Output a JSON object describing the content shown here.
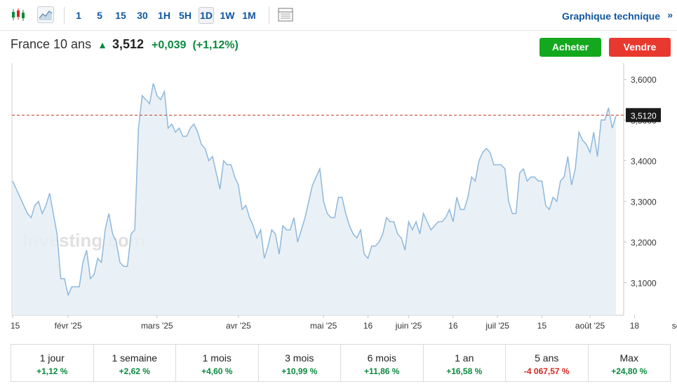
{
  "toolbar": {
    "timeframes": [
      "1",
      "5",
      "15",
      "30",
      "1H",
      "5H",
      "1D",
      "1W",
      "1M"
    ],
    "active_timeframe": "1D",
    "tech_link": "Graphique technique",
    "tech_arrow": "»"
  },
  "quote": {
    "name": "France 10 ans",
    "last": "3,512",
    "change": "+0,039",
    "change_pct": "(+1,12%)",
    "direction_icon": "arrow-up-icon"
  },
  "actions": {
    "buy": "Acheter",
    "sell": "Vendre"
  },
  "colors": {
    "up": "#0b8a3e",
    "down": "#d3271f",
    "line": "#8fb8dc",
    "fill": "#e6eef5",
    "ref_line": "#c0392b",
    "buy": "#14a81e",
    "sell": "#e8392f"
  },
  "chart_data": {
    "type": "area",
    "watermark": "Investing.com",
    "current_value": 3.512,
    "current_label": "3,5120",
    "ylim": [
      3.02,
      3.64
    ],
    "yticks": [
      3.1,
      3.2,
      3.3,
      3.4,
      3.5,
      3.6
    ],
    "ytick_labels": [
      "3,1000",
      "3,2000",
      "3,3000",
      "3,4000",
      "3,5000",
      "3,6000"
    ],
    "xtick_labels": [
      "15",
      "févr '25",
      "mars '25",
      "avr '25",
      "mai '25",
      "16",
      "juin '25",
      "16",
      "juil '25",
      "15",
      "août '25",
      "18",
      "sept"
    ],
    "xtick_index": [
      0,
      15,
      39,
      61,
      84,
      96,
      107,
      119,
      131,
      143,
      156,
      168,
      180
    ],
    "values": [
      3.35,
      3.33,
      3.31,
      3.29,
      3.27,
      3.26,
      3.29,
      3.3,
      3.27,
      3.29,
      3.32,
      3.27,
      3.22,
      3.11,
      3.11,
      3.07,
      3.09,
      3.09,
      3.09,
      3.15,
      3.18,
      3.11,
      3.12,
      3.16,
      3.15,
      3.23,
      3.27,
      3.22,
      3.2,
      3.15,
      3.14,
      3.14,
      3.22,
      3.23,
      3.48,
      3.56,
      3.55,
      3.54,
      3.59,
      3.56,
      3.55,
      3.57,
      3.48,
      3.49,
      3.47,
      3.48,
      3.46,
      3.46,
      3.48,
      3.49,
      3.47,
      3.44,
      3.43,
      3.4,
      3.41,
      3.37,
      3.33,
      3.4,
      3.39,
      3.39,
      3.36,
      3.34,
      3.28,
      3.29,
      3.26,
      3.24,
      3.21,
      3.23,
      3.16,
      3.19,
      3.23,
      3.22,
      3.17,
      3.24,
      3.23,
      3.23,
      3.26,
      3.2,
      3.23,
      3.26,
      3.3,
      3.34,
      3.36,
      3.38,
      3.3,
      3.27,
      3.26,
      3.26,
      3.31,
      3.31,
      3.27,
      3.24,
      3.22,
      3.21,
      3.23,
      3.17,
      3.16,
      3.19,
      3.19,
      3.2,
      3.22,
      3.26,
      3.25,
      3.25,
      3.22,
      3.21,
      3.18,
      3.25,
      3.23,
      3.25,
      3.22,
      3.27,
      3.25,
      3.23,
      3.24,
      3.25,
      3.25,
      3.26,
      3.28,
      3.25,
      3.31,
      3.28,
      3.28,
      3.31,
      3.36,
      3.35,
      3.4,
      3.42,
      3.43,
      3.42,
      3.39,
      3.39,
      3.39,
      3.38,
      3.3,
      3.27,
      3.27,
      3.37,
      3.38,
      3.35,
      3.36,
      3.36,
      3.35,
      3.35,
      3.29,
      3.28,
      3.31,
      3.3,
      3.35,
      3.36,
      3.41,
      3.34,
      3.38,
      3.47,
      3.45,
      3.44,
      3.42,
      3.47,
      3.41,
      3.5,
      3.5,
      3.53,
      3.48,
      3.51
    ]
  },
  "periods": [
    {
      "label": "1 jour",
      "value": "+1,12 %",
      "dir": "pos"
    },
    {
      "label": "1 semaine",
      "value": "+2,62 %",
      "dir": "pos"
    },
    {
      "label": "1 mois",
      "value": "+4,60 %",
      "dir": "pos"
    },
    {
      "label": "3 mois",
      "value": "+10,99 %",
      "dir": "pos"
    },
    {
      "label": "6 mois",
      "value": "+11,86 %",
      "dir": "pos"
    },
    {
      "label": "1 an",
      "value": "+16,58 %",
      "dir": "pos"
    },
    {
      "label": "5 ans",
      "value": "-4 067,57 %",
      "dir": "neg"
    },
    {
      "label": "Max",
      "value": "+24,80 %",
      "dir": "pos"
    }
  ]
}
